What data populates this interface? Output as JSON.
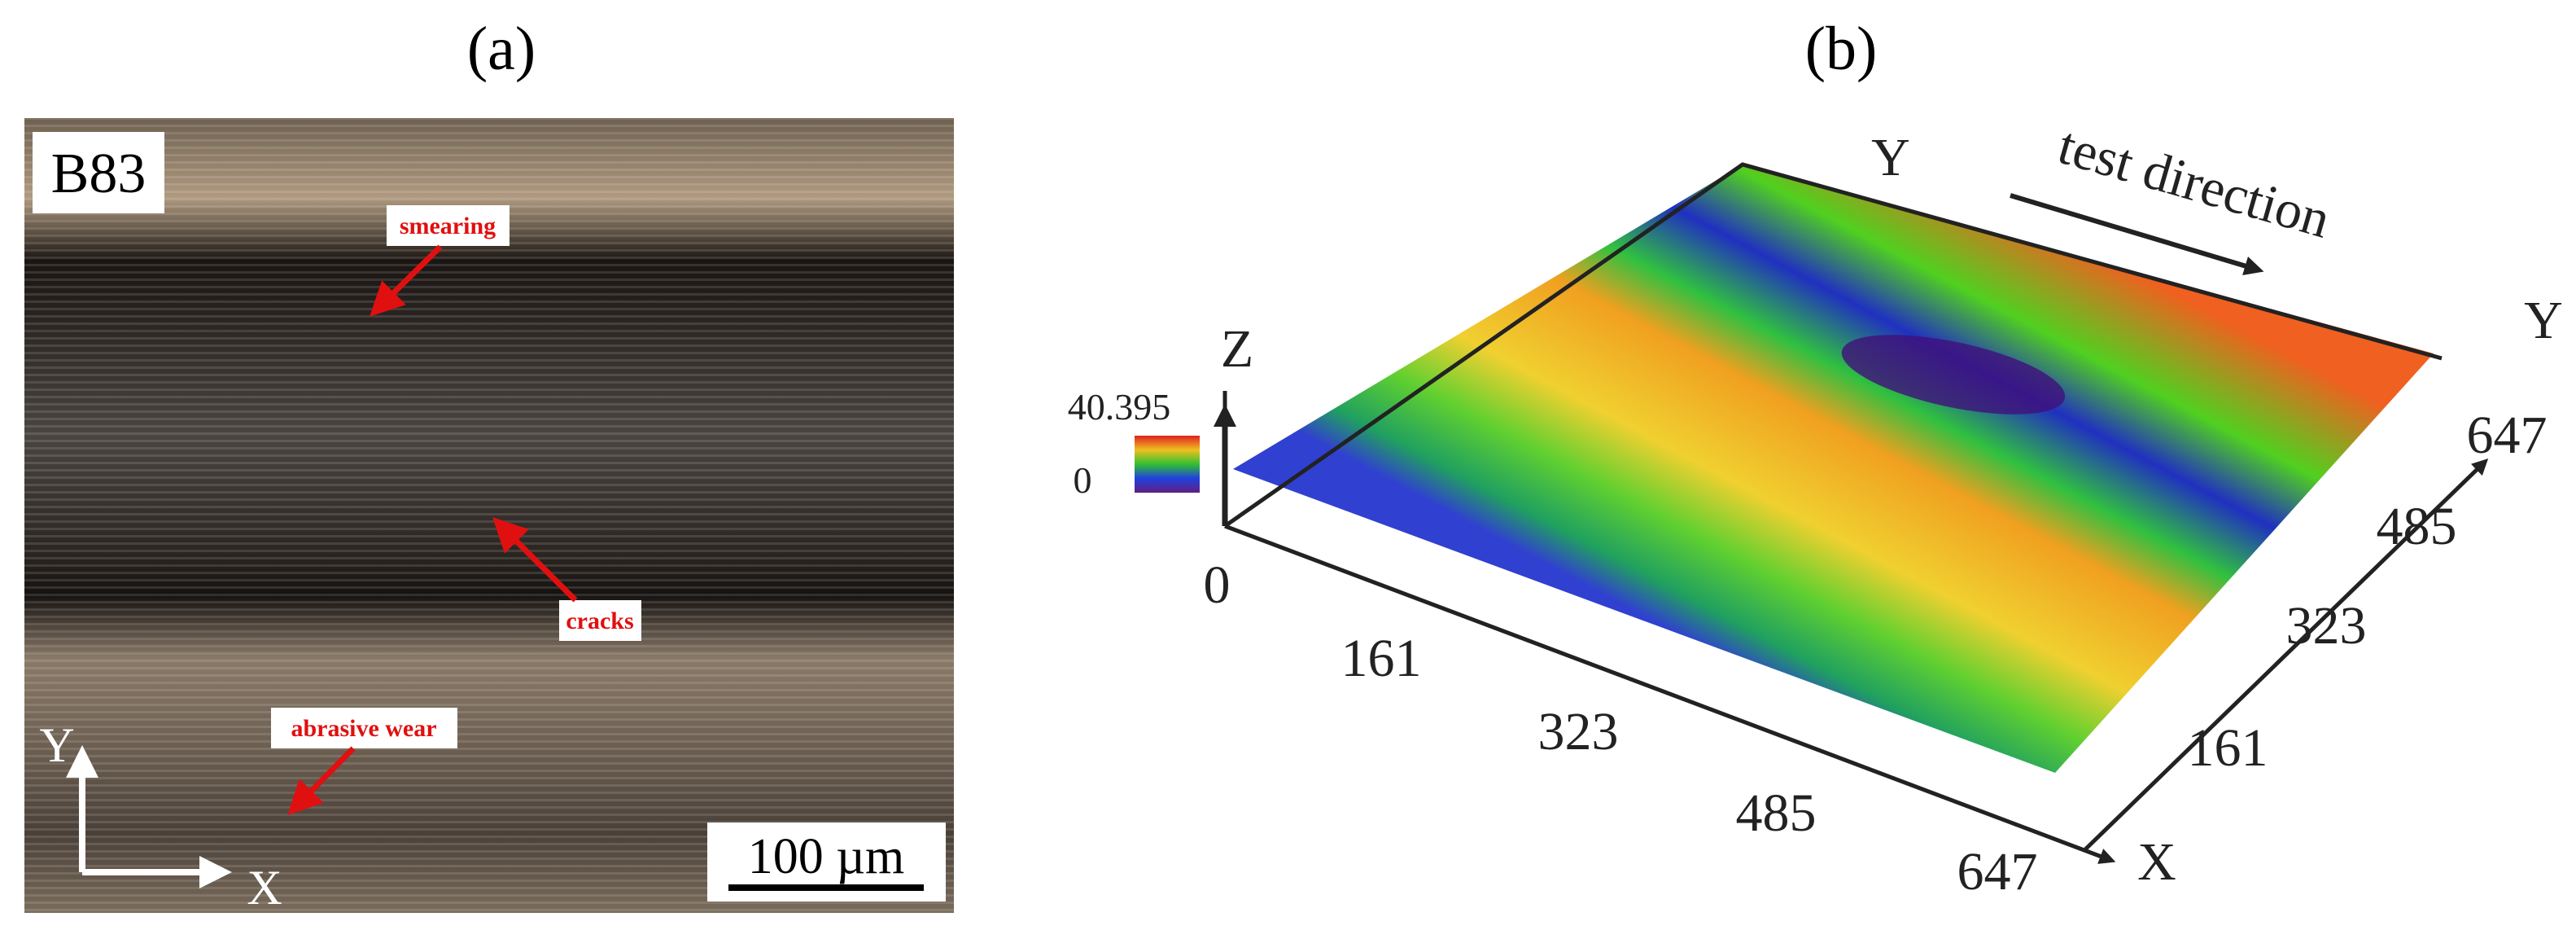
{
  "panel_a": {
    "label": "(a)",
    "sample": "B83",
    "annotations": [
      "smearing",
      "cracks",
      "abrasive wear"
    ],
    "axis_y": "Y",
    "axis_x": "X",
    "scale_bar": "100 µm"
  },
  "panel_b": {
    "label": "(b)",
    "axis_z": "Z",
    "axis_y_top": "Y",
    "axis_y": "Y",
    "axis_x": "X",
    "direction": "test direction",
    "colorbar": [
      "40.395",
      "0"
    ],
    "x_ticks": [
      "0",
      "161",
      "323",
      "485",
      "647"
    ],
    "y_ticks": [
      "161",
      "323",
      "485",
      "647"
    ]
  }
}
